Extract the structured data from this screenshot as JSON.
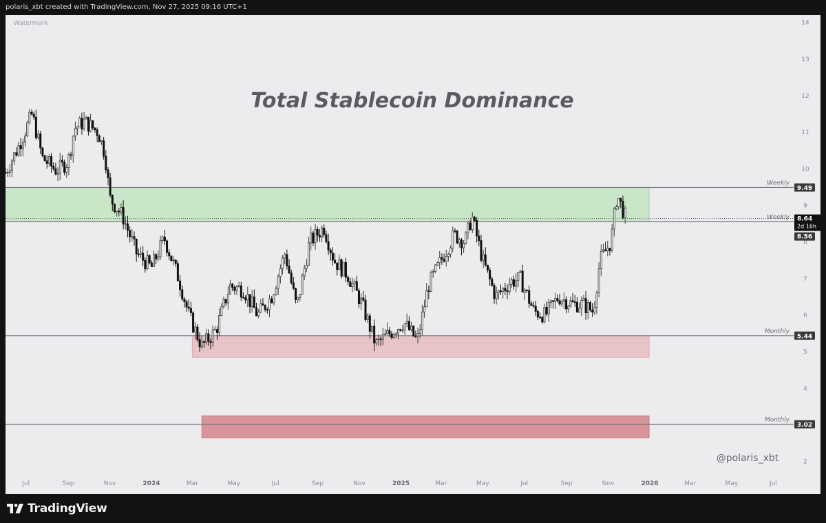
{
  "header": {
    "attribution": "polaris_xbt created with TradingView.com, Nov 27, 2025 09:16 UTC+1"
  },
  "footer": {
    "brand": "TradingView"
  },
  "colors": {
    "candle_up": "#3e3e3e",
    "candle_down": "#111111",
    "zone_green": "#c9e6c9",
    "zone_pink": "#e8c4c9",
    "zone_red": "#d9949b",
    "level_line": "#7a7a80",
    "background": "#ecebee"
  },
  "chart_data": {
    "type": "candlestick",
    "watermark": "Watermark",
    "title": "Total Stablecoin Dominance",
    "signature": "@polaris_xbt",
    "y_axis": {
      "ticks": [
        2,
        3,
        4,
        5,
        6,
        7,
        8,
        9,
        10,
        11,
        12,
        13,
        14
      ],
      "range": [
        1.6,
        14.2
      ]
    },
    "x_axis": {
      "ticks": [
        "Jul",
        "Sep",
        "Nov",
        "2024",
        "Mar",
        "May",
        "Jul",
        "Sep",
        "Nov",
        "2025",
        "Mar",
        "May",
        "Jul",
        "Sep",
        "Nov",
        "2026",
        "Mar",
        "May",
        "Jul"
      ],
      "bold_ticks": [
        "2024",
        "2025",
        "2026"
      ],
      "start": "2023-06-01",
      "end": "2026-07-31"
    },
    "levels": [
      {
        "label": "Weekly",
        "value": 9.49
      },
      {
        "label": "Weekly",
        "value": 8.56
      },
      {
        "label": "Monthly",
        "value": 5.44
      },
      {
        "label": "Monthly",
        "value": 3.02
      }
    ],
    "last_price": {
      "value": 8.64,
      "countdown": "2d 16h"
    },
    "zones": [
      {
        "color": "green",
        "low": 8.56,
        "high": 9.49,
        "start": "2023-06-01",
        "end": "2025-12-31"
      },
      {
        "color": "pink",
        "low": 4.85,
        "high": 5.44,
        "start": "2024-03-01",
        "end": "2025-12-31"
      },
      {
        "color": "red",
        "low": 2.65,
        "high": 3.25,
        "start": "2024-03-15",
        "end": "2025-12-31"
      }
    ],
    "price_path": [
      [
        "2023-06-01",
        9.9
      ],
      [
        "2023-06-20",
        10.6
      ],
      [
        "2023-07-10",
        11.5
      ],
      [
        "2023-07-25",
        10.3
      ],
      [
        "2023-08-15",
        9.95
      ],
      [
        "2023-09-01",
        10.2
      ],
      [
        "2023-09-10",
        11.1
      ],
      [
        "2023-09-25",
        11.3
      ],
      [
        "2023-10-15",
        11.0
      ],
      [
        "2023-10-25",
        10.4
      ],
      [
        "2023-11-01",
        9.2
      ],
      [
        "2023-11-20",
        8.7
      ],
      [
        "2023-12-10",
        7.7
      ],
      [
        "2024-01-01",
        7.3
      ],
      [
        "2024-01-20",
        8.1
      ],
      [
        "2024-02-10",
        7.0
      ],
      [
        "2024-02-25",
        6.0
      ],
      [
        "2024-03-15",
        5.15
      ],
      [
        "2024-04-05",
        5.6
      ],
      [
        "2024-04-25",
        6.8
      ],
      [
        "2024-05-15",
        6.7
      ],
      [
        "2024-06-05",
        6.0
      ],
      [
        "2024-06-25",
        6.5
      ],
      [
        "2024-07-15",
        7.7
      ],
      [
        "2024-08-01",
        6.2
      ],
      [
        "2024-08-20",
        8.0
      ],
      [
        "2024-09-10",
        8.4
      ],
      [
        "2024-09-25",
        7.5
      ],
      [
        "2024-10-15",
        7.1
      ],
      [
        "2024-11-05",
        6.3
      ],
      [
        "2024-11-25",
        5.2
      ],
      [
        "2024-12-15",
        5.5
      ],
      [
        "2025-01-05",
        5.8
      ],
      [
        "2025-01-25",
        5.3
      ],
      [
        "2025-02-10",
        6.8
      ],
      [
        "2025-03-01",
        7.5
      ],
      [
        "2025-03-20",
        8.2
      ],
      [
        "2025-04-05",
        8.0
      ],
      [
        "2025-04-15",
        8.7
      ],
      [
        "2025-05-01",
        7.5
      ],
      [
        "2025-05-20",
        6.5
      ],
      [
        "2025-06-10",
        6.9
      ],
      [
        "2025-06-25",
        7.0
      ],
      [
        "2025-07-15",
        6.1
      ],
      [
        "2025-08-01",
        6.0
      ],
      [
        "2025-08-20",
        6.5
      ],
      [
        "2025-09-10",
        6.3
      ],
      [
        "2025-09-25",
        6.3
      ],
      [
        "2025-10-10",
        6.1
      ],
      [
        "2025-10-20",
        7.5
      ],
      [
        "2025-11-05",
        8.0
      ],
      [
        "2025-11-14",
        9.3
      ],
      [
        "2025-11-20",
        9.0
      ],
      [
        "2025-11-27",
        8.64
      ]
    ]
  }
}
